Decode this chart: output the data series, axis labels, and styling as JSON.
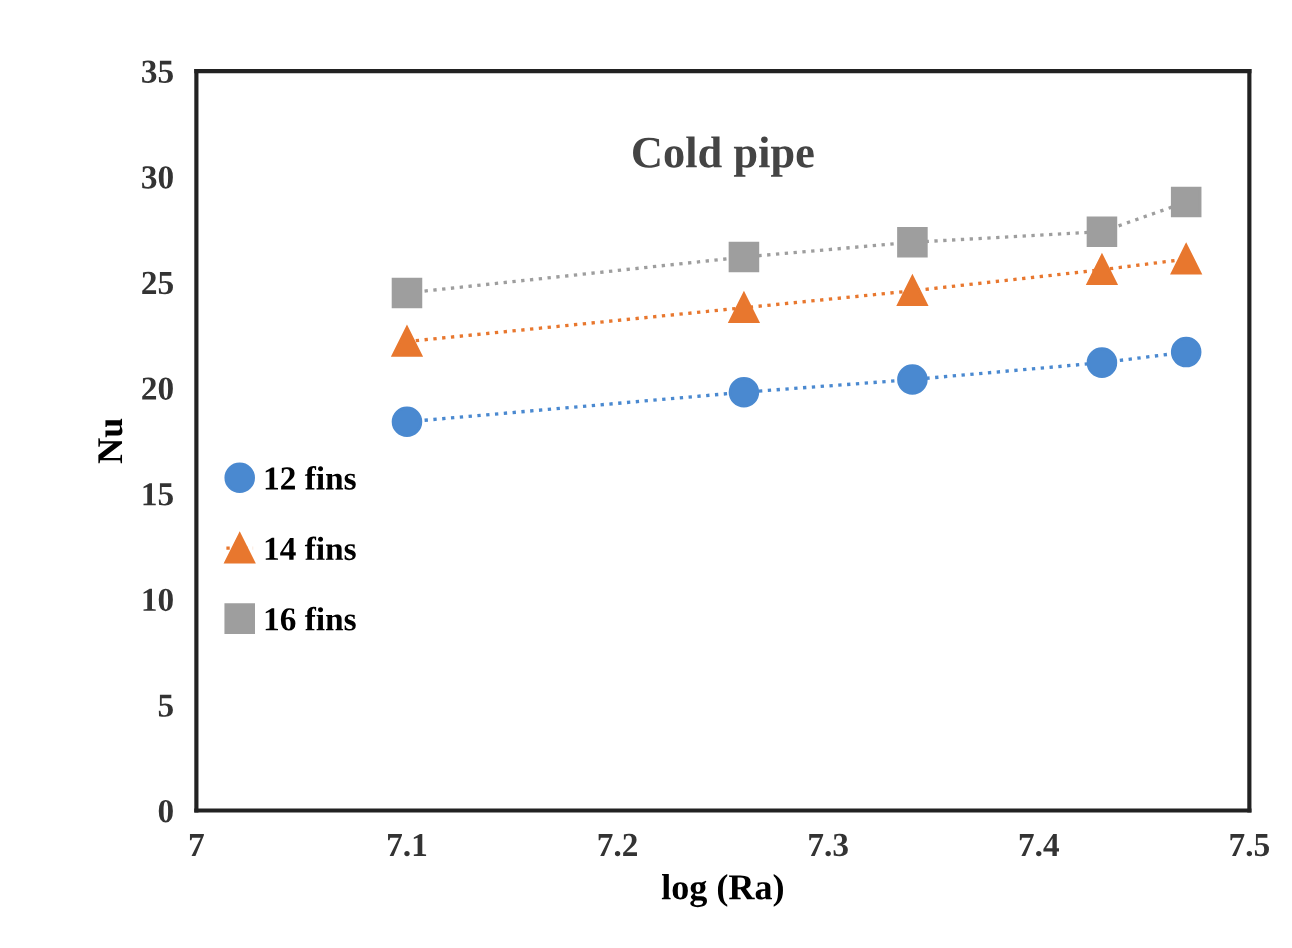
{
  "chart_data": {
    "type": "line",
    "title": "Cold pipe",
    "xlabel": "log (Ra)",
    "ylabel": "Nu",
    "x": [
      7.1,
      7.26,
      7.34,
      7.43,
      7.47
    ],
    "series": [
      {
        "name": "12 fins",
        "color": "#4a89d0",
        "marker": "circle",
        "values": [
          18.4,
          19.8,
          20.4,
          21.2,
          21.7
        ]
      },
      {
        "name": "14 fins",
        "color": "#e8772e",
        "marker": "triangle",
        "values": [
          22.2,
          23.8,
          24.6,
          25.6,
          26.1
        ]
      },
      {
        "name": "16 fins",
        "color": "#9e9e9e",
        "marker": "square",
        "values": [
          24.5,
          26.2,
          26.9,
          27.4,
          28.8
        ]
      }
    ],
    "line_style": "dotted",
    "xlim": [
      7,
      7.5
    ],
    "xticks": [
      7,
      7.1,
      7.2,
      7.3,
      7.4,
      7.5
    ],
    "ylim": [
      0,
      35
    ],
    "yticks": [
      0,
      5,
      10,
      15,
      20,
      25,
      30,
      35
    ],
    "grid": false,
    "legend": "left"
  }
}
